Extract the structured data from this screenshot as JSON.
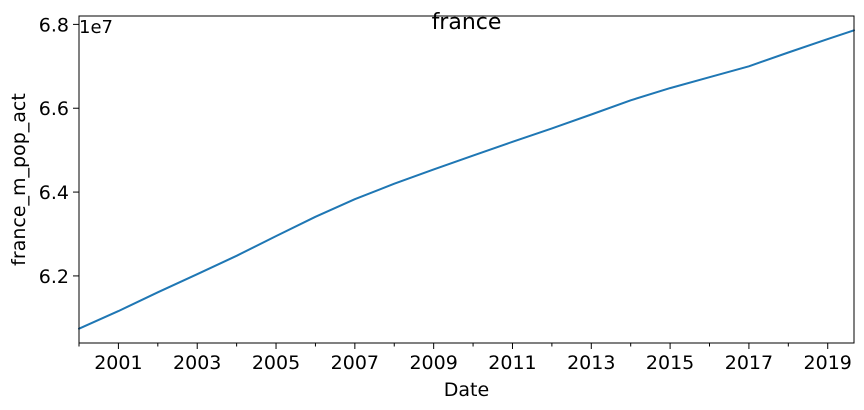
{
  "chart_data": {
    "type": "line",
    "title": "france",
    "xlabel": "Date",
    "ylabel": "france_m_pop_act",
    "y_offset_label": "1e7",
    "y_scale": 10000000,
    "x_range": [
      "2000-01",
      "2019-09"
    ],
    "ylim": [
      60400000,
      68200000
    ],
    "x_ticks": [
      "2001",
      "2003",
      "2005",
      "2007",
      "2009",
      "2011",
      "2013",
      "2015",
      "2017",
      "2019"
    ],
    "y_ticks": [
      "6.2",
      "6.4",
      "6.6",
      "6.8"
    ],
    "y_tick_values": [
      62000000,
      64000000,
      66000000,
      68000000
    ],
    "grid": false,
    "series": [
      {
        "color": "#1f77b4",
        "x": [
          "2000-01",
          "2001-01",
          "2002-01",
          "2003-01",
          "2004-01",
          "2005-01",
          "2006-01",
          "2007-01",
          "2008-01",
          "2009-01",
          "2010-01",
          "2011-01",
          "2012-01",
          "2013-01",
          "2014-01",
          "2015-01",
          "2016-01",
          "2017-01",
          "2018-01",
          "2019-01",
          "2019-09"
        ],
        "y": [
          60740000,
          61160000,
          61610000,
          62040000,
          62480000,
          62950000,
          63410000,
          63830000,
          64200000,
          64540000,
          64870000,
          65200000,
          65520000,
          65850000,
          66190000,
          66480000,
          66740000,
          67000000,
          67330000,
          67650000,
          67860000
        ]
      }
    ]
  }
}
